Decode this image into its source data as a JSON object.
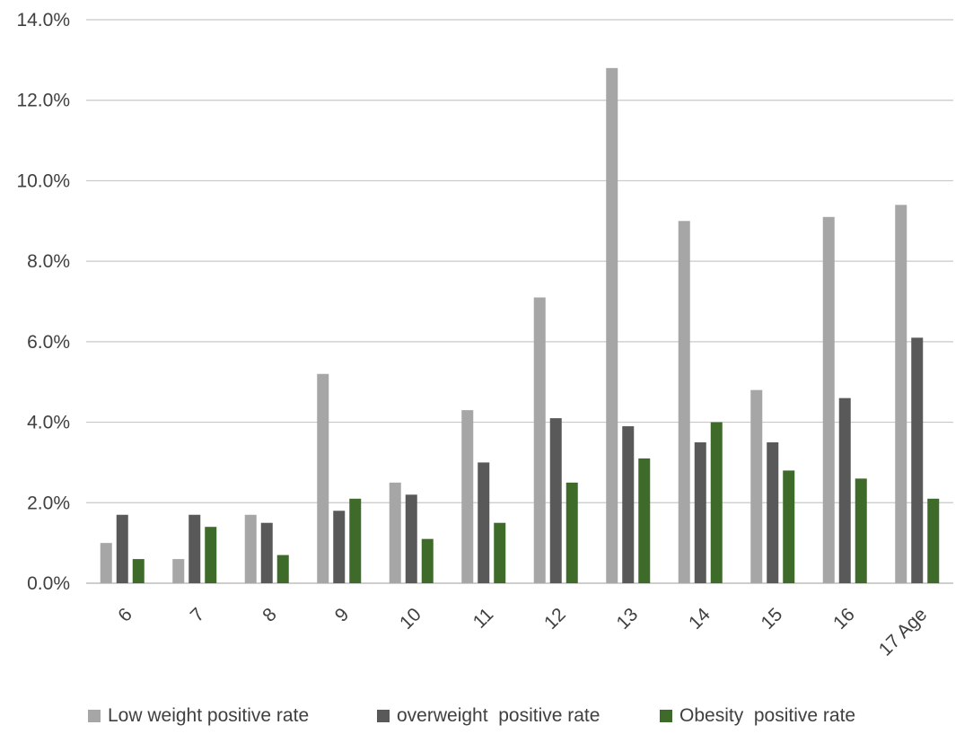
{
  "chart_data": {
    "type": "bar",
    "title": "",
    "xlabel": "Age",
    "ylabel": "",
    "ylim": [
      0,
      0.14
    ],
    "yticks": [
      0,
      0.02,
      0.04,
      0.06,
      0.08,
      0.1,
      0.12,
      0.14
    ],
    "ytick_labels": [
      "0.0%",
      "2.0%",
      "4.0%",
      "6.0%",
      "8.0%",
      "10.0%",
      "12.0%",
      "14.0%"
    ],
    "grid": true,
    "legend_position": "bottom",
    "categories": [
      "6",
      "7",
      "8",
      "9",
      "10",
      "11",
      "12",
      "13",
      "14",
      "15",
      "16",
      "17"
    ],
    "category_labels": [
      "6",
      "7",
      "8",
      "9",
      "10",
      "11",
      "12",
      "13",
      "14",
      "15",
      "16",
      "17 Age"
    ],
    "series": [
      {
        "name": "Low weight positive rate",
        "color": "#a6a6a6",
        "values": [
          0.01,
          0.006,
          0.017,
          0.052,
          0.025,
          0.043,
          0.071,
          0.128,
          0.09,
          0.048,
          0.091,
          0.094
        ]
      },
      {
        "name": "overweight  positive rate",
        "color": "#595959",
        "values": [
          0.017,
          0.017,
          0.015,
          0.018,
          0.022,
          0.03,
          0.041,
          0.039,
          0.035,
          0.035,
          0.046,
          0.061
        ]
      },
      {
        "name": "Obesity  positive rate",
        "color": "#3f6b2a",
        "values": [
          0.006,
          0.014,
          0.007,
          0.021,
          0.011,
          0.015,
          0.025,
          0.031,
          0.04,
          0.028,
          0.026,
          0.021
        ]
      }
    ]
  }
}
